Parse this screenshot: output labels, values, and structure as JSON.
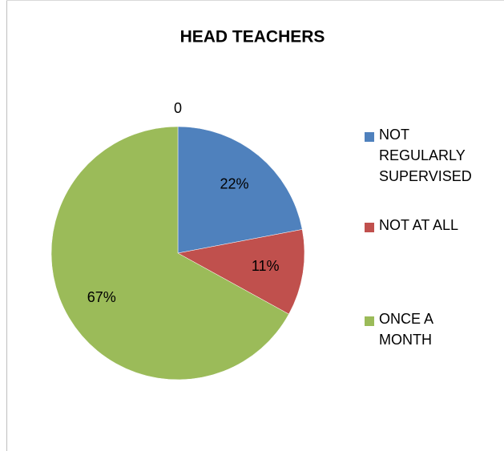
{
  "chart_data": {
    "type": "pie",
    "title": "HEAD TEACHERS",
    "categories": [
      "NOT REGULARLY SUPERVISED",
      "NOT AT ALL",
      "ONCE A MONTH",
      null
    ],
    "values": [
      22,
      11,
      67,
      0
    ],
    "value_labels": [
      "22%",
      "11%",
      "67%",
      "0"
    ],
    "colors": [
      "#4f81bd",
      "#c0504d",
      "#9bbb59",
      "#8064a2"
    ]
  }
}
